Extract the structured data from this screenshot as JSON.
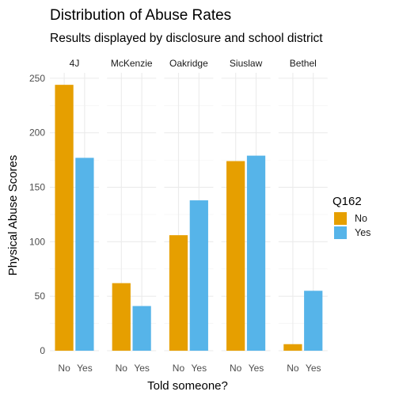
{
  "chart_data": {
    "type": "bar",
    "title": "Distribution of Abuse Rates",
    "subtitle": "Results displayed by disclosure and school district",
    "xlabel": "Told someone?",
    "ylabel": "Physical Abuse Scores",
    "ylim": [
      0,
      255
    ],
    "yticks": [
      0,
      50,
      100,
      150,
      200,
      250
    ],
    "categories": [
      "No",
      "Yes"
    ],
    "facets": [
      {
        "name": "4J",
        "values": [
          244,
          177
        ]
      },
      {
        "name": "McKenzie",
        "values": [
          62,
          41
        ]
      },
      {
        "name": "Oakridge",
        "values": [
          106,
          138
        ]
      },
      {
        "name": "Siuslaw",
        "values": [
          174,
          179
        ]
      },
      {
        "name": "Bethel",
        "values": [
          6,
          55
        ]
      }
    ],
    "legend": {
      "title": "Q162",
      "position": "right",
      "items": [
        {
          "label": "No",
          "color": "#E69F00"
        },
        {
          "label": "Yes",
          "color": "#56B4E9"
        }
      ]
    },
    "grid": true
  }
}
